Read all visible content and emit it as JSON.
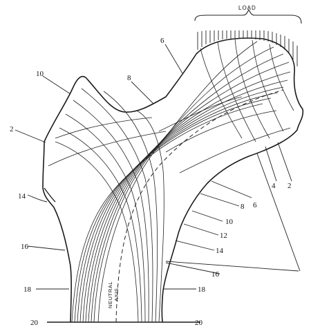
{
  "title": "",
  "load_label": "LOAD",
  "neutral_axis": [
    "NEUTRAL",
    "AXIS"
  ],
  "numbers": [
    "2",
    "4",
    "6",
    "8",
    "10",
    "12",
    "14",
    "16",
    "18",
    "20"
  ],
  "line_color": "#222222"
}
